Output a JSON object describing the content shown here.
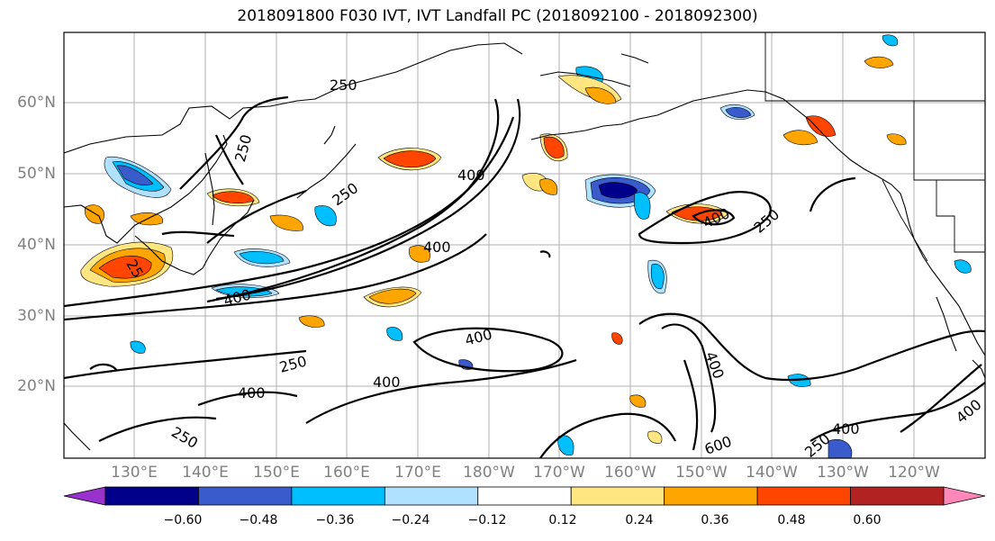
{
  "title": "2018091800 F030 IVT, IVT Landfall PC (2018092100 - 2018092300)",
  "lat_labels": [
    "60°N",
    "50°N",
    "40°N",
    "30°N",
    "20°N"
  ],
  "lon_labels": [
    "130°E",
    "140°E",
    "150°E",
    "160°E",
    "170°E",
    "180°W",
    "170°W",
    "160°W",
    "150°W",
    "140°W",
    "130°W",
    "120°W"
  ],
  "colorbar": {
    "ticks": [
      "−0.60",
      "−0.48",
      "−0.36",
      "−0.24",
      "−0.12",
      "0.12",
      "0.24",
      "0.36",
      "0.48",
      "0.60"
    ],
    "colors": [
      "#9932cc",
      "#00008b",
      "#3a5bcc",
      "#00bfff",
      "#b0e2ff",
      "#ffffff",
      "#ffe680",
      "#ffa500",
      "#ff4500",
      "#b22222",
      "#ff88b8"
    ]
  },
  "contour_labels": [
    {
      "text": "250"
    },
    {
      "text": "250"
    },
    {
      "text": "250"
    },
    {
      "text": "400"
    },
    {
      "text": "400"
    },
    {
      "text": "400"
    },
    {
      "text": "250"
    },
    {
      "text": "400"
    },
    {
      "text": "250"
    },
    {
      "text": "400"
    },
    {
      "text": "250"
    },
    {
      "text": "400"
    },
    {
      "text": "400"
    },
    {
      "text": "400"
    },
    {
      "text": "600"
    },
    {
      "text": "250"
    },
    {
      "text": "400"
    },
    {
      "text": "400"
    },
    {
      "text": "25"
    }
  ]
}
